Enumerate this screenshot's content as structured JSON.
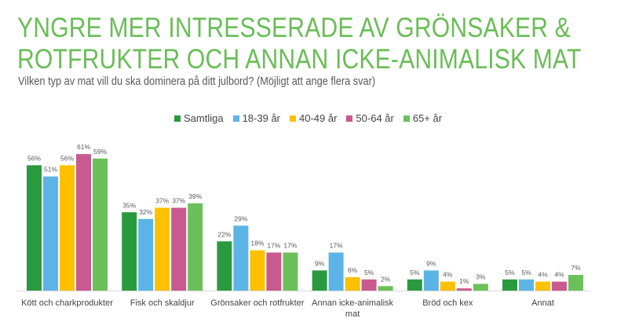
{
  "header": {
    "title_line1": "YNGRE MER INTRESSERADE AV GRÖNSAKER &",
    "title_line2": "ROTFRUKTER OCH ANNAN ICKE-ANIMALISK MAT",
    "subtitle": "Vilken typ av mat vill du ska dominera på ditt julbord? (Möjligt att ange flera svar)"
  },
  "chart_data": {
    "type": "bar",
    "title": "YNGRE MER INTRESSERADE AV GRÖNSAKER & ROTFRUKTER OCH ANNAN ICKE-ANIMALISK MAT",
    "subtitle": "Vilken typ av mat vill du ska dominera på ditt julbord? (Möjligt att ange flera svar)",
    "xlabel": "",
    "ylabel": "",
    "ylim": [
      0,
      65
    ],
    "grid": false,
    "legend_position": "top-center",
    "categories": [
      [
        "Kött och charkprodukter"
      ],
      [
        "Fisk och skaldjur"
      ],
      [
        "Grönsaker och rotfrukter"
      ],
      [
        "Annan icke-animalisk",
        "mat"
      ],
      [
        "Bröd och kex"
      ],
      [
        "Annat"
      ]
    ],
    "series": [
      {
        "name": "Samtliga",
        "color": "#2a9a3e",
        "values": [
          56,
          35,
          22,
          9,
          5,
          5
        ]
      },
      {
        "name": "18-39 år",
        "color": "#5cb4e6",
        "values": [
          51,
          32,
          29,
          17,
          9,
          5
        ]
      },
      {
        "name": "40-49 år",
        "color": "#ffc000",
        "values": [
          56,
          37,
          18,
          6,
          4,
          4
        ]
      },
      {
        "name": "50-64 år",
        "color": "#c95a8f",
        "values": [
          61,
          37,
          17,
          5,
          1,
          4
        ]
      },
      {
        "name": "65+ år",
        "color": "#6cc05a",
        "values": [
          59,
          39,
          17,
          2,
          3,
          7
        ]
      }
    ],
    "value_suffix": "%"
  }
}
